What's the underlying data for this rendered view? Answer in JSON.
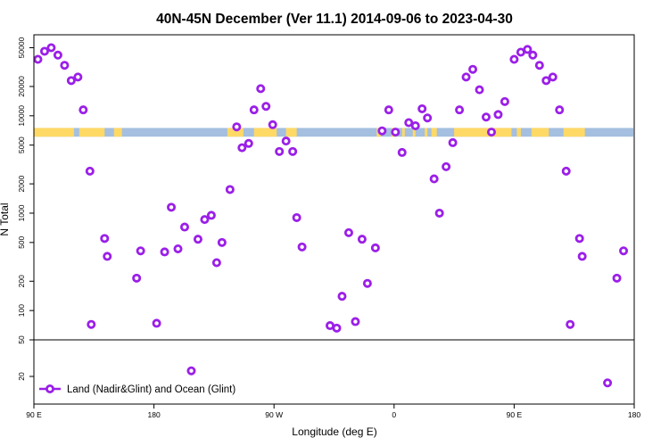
{
  "chart_data": {
    "type": "scatter",
    "title": "40N-45N December (Ver 11.1)   2014-09-06 to 2023-04-30",
    "xlabel": "Longitude (deg E)",
    "ylabel": "N Total",
    "x_ticks": [
      {
        "value": 90,
        "label": "90 E"
      },
      {
        "value": 180,
        "label": "180"
      },
      {
        "value": 270,
        "label": "90 W"
      },
      {
        "value": 360,
        "label": "0"
      },
      {
        "value": 450,
        "label": "90 E"
      },
      {
        "value": 540,
        "label": "180"
      }
    ],
    "xlim": [
      90,
      540
    ],
    "ylim": [
      10,
      65000
    ],
    "y_ticks": [
      "20",
      "50",
      "100",
      "200",
      "500",
      "1000",
      "2000",
      "5000",
      "10000",
      "20000",
      "50000"
    ],
    "y_scale": "log",
    "divider_at": 50,
    "legend": {
      "label": "Land (Nadir&Glint) and Ocean (Glint)",
      "position": "bottom-left"
    },
    "marker_color": "#9b1fe8",
    "land_color": "#ffd966",
    "ocean_color": "#a4bfdf",
    "band_y_range": [
      6100,
      7500
    ],
    "land_segments": [
      [
        90,
        120
      ],
      [
        124,
        143
      ],
      [
        150,
        156
      ],
      [
        235,
        247
      ],
      [
        255,
        272
      ],
      [
        279,
        287
      ],
      [
        347,
        350
      ],
      [
        358,
        362
      ],
      [
        366,
        368
      ],
      [
        374,
        376
      ],
      [
        383,
        385
      ],
      [
        388,
        392
      ],
      [
        405,
        448
      ],
      [
        452,
        455
      ],
      [
        463,
        476
      ],
      [
        487,
        503
      ]
    ],
    "series": [
      {
        "name": "Land (Nadir&Glint) and Ocean (Glint)",
        "points": [
          [
            93,
            38000
          ],
          [
            98,
            46000
          ],
          [
            103,
            50000
          ],
          [
            108,
            42000
          ],
          [
            113,
            33000
          ],
          [
            118,
            23000
          ],
          [
            123,
            25000
          ],
          [
            127,
            11500
          ],
          [
            132,
            2700
          ],
          [
            133,
            72
          ],
          [
            143,
            550
          ],
          [
            145,
            360
          ],
          [
            167,
            215
          ],
          [
            170,
            410
          ],
          [
            182,
            74
          ],
          [
            188,
            400
          ],
          [
            193,
            1150
          ],
          [
            198,
            430
          ],
          [
            203,
            720
          ],
          [
            208,
            23
          ],
          [
            213,
            540
          ],
          [
            218,
            860
          ],
          [
            223,
            950
          ],
          [
            227,
            310
          ],
          [
            231,
            500
          ],
          [
            237,
            1750
          ],
          [
            242,
            7700
          ],
          [
            246,
            4700
          ],
          [
            251,
            5200
          ],
          [
            255,
            11500
          ],
          [
            260,
            19000
          ],
          [
            264,
            12500
          ],
          [
            269,
            8100
          ],
          [
            274,
            4300
          ],
          [
            279,
            5500
          ],
          [
            284,
            4300
          ],
          [
            287,
            900
          ],
          [
            291,
            450
          ],
          [
            312,
            70
          ],
          [
            317,
            66
          ],
          [
            321,
            140
          ],
          [
            326,
            630
          ],
          [
            331,
            77
          ],
          [
            336,
            540
          ],
          [
            340,
            190
          ],
          [
            346,
            440
          ],
          [
            351,
            7000
          ],
          [
            356,
            11500
          ],
          [
            361,
            6800
          ],
          [
            366,
            4200
          ],
          [
            371,
            8500
          ],
          [
            376,
            7900
          ],
          [
            381,
            11800
          ],
          [
            385,
            9500
          ],
          [
            390,
            2250
          ],
          [
            394,
            1000
          ],
          [
            399,
            3000
          ],
          [
            404,
            5300
          ],
          [
            409,
            11500
          ],
          [
            414,
            25000
          ],
          [
            419,
            30000
          ],
          [
            424,
            18500
          ],
          [
            429,
            9700
          ],
          [
            433,
            6800
          ],
          [
            438,
            10300
          ],
          [
            443,
            14000
          ],
          [
            450,
            38000
          ],
          [
            455,
            45000
          ],
          [
            460,
            48000
          ],
          [
            464,
            42000
          ],
          [
            469,
            33000
          ],
          [
            474,
            23000
          ],
          [
            479,
            25000
          ],
          [
            484,
            11500
          ],
          [
            489,
            2700
          ],
          [
            492,
            72
          ],
          [
            499,
            550
          ],
          [
            501,
            360
          ],
          [
            520,
            17
          ],
          [
            527,
            215
          ],
          [
            532,
            410
          ]
        ]
      }
    ]
  }
}
